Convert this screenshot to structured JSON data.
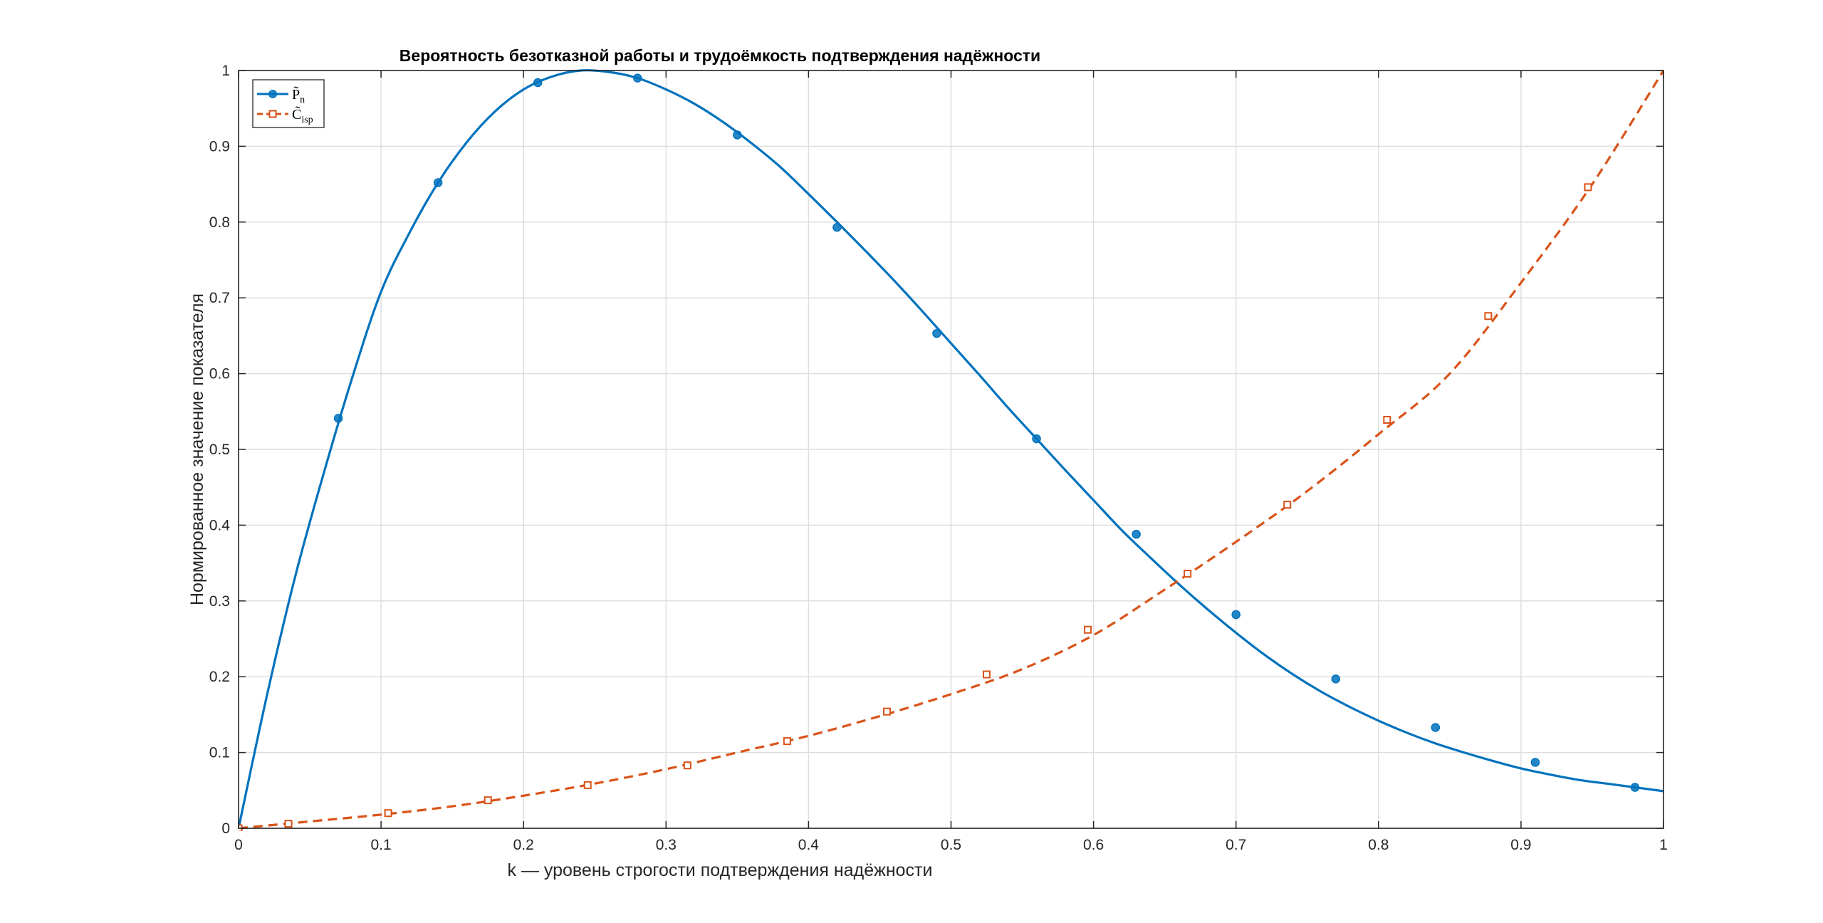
{
  "chart_data": {
    "type": "line",
    "title": "Вероятность безотказной работы и трудоёмкость подтверждения надёжности",
    "xlabel": "k — уровень строгости подтверждения надёжности",
    "ylabel": "Нормированное значение показателя",
    "xlim": [
      0,
      1
    ],
    "ylim": [
      0,
      1
    ],
    "xticks": [
      "0",
      "0.1",
      "0.2",
      "0.3",
      "0.4",
      "0.5",
      "0.6",
      "0.7",
      "0.8",
      "0.9",
      "1"
    ],
    "yticks": [
      "0",
      "0.1",
      "0.2",
      "0.3",
      "0.4",
      "0.5",
      "0.6",
      "0.7",
      "0.8",
      "0.9",
      "1"
    ],
    "grid": true,
    "legend_position": "top-left",
    "series": [
      {
        "name": "P̃_n",
        "legend_main": "P̃",
        "legend_sub": "n",
        "color": "#0072BD",
        "line_style": "solid",
        "marker": "circle",
        "x": [
          0,
          0.02,
          0.04,
          0.06,
          0.08,
          0.1,
          0.12,
          0.14,
          0.16,
          0.18,
          0.2,
          0.22,
          0.24,
          0.26,
          0.28,
          0.3,
          0.32,
          0.34,
          0.36,
          0.38,
          0.4,
          0.42,
          0.44,
          0.46,
          0.48,
          0.5,
          0.52,
          0.54,
          0.56,
          0.58,
          0.6,
          0.62,
          0.64,
          0.66,
          0.68,
          0.7,
          0.72,
          0.74,
          0.76,
          0.78,
          0.8,
          0.82,
          0.84,
          0.86,
          0.88,
          0.9,
          0.92,
          0.94,
          0.96,
          0.98,
          1.0
        ],
        "y": [
          0,
          0.176,
          0.334,
          0.47,
          0.596,
          0.708,
          0.786,
          0.852,
          0.905,
          0.946,
          0.975,
          0.992,
          1.0,
          0.998,
          0.99,
          0.975,
          0.956,
          0.932,
          0.904,
          0.873,
          0.837,
          0.8,
          0.762,
          0.723,
          0.682,
          0.64,
          0.598,
          0.555,
          0.514,
          0.473,
          0.433,
          0.393,
          0.357,
          0.322,
          0.289,
          0.258,
          0.229,
          0.203,
          0.18,
          0.16,
          0.142,
          0.126,
          0.112,
          0.1,
          0.089,
          0.079,
          0.071,
          0.064,
          0.059,
          0.054,
          0.049
        ],
        "markers_x": [
          0,
          0.07,
          0.14,
          0.21,
          0.28,
          0.35,
          0.42,
          0.49,
          0.56,
          0.63,
          0.7,
          0.77,
          0.84,
          0.91,
          0.98
        ],
        "markers_y": [
          0,
          0.541,
          0.852,
          0.984,
          0.99,
          0.915,
          0.793,
          0.653,
          0.514,
          0.388,
          0.282,
          0.197,
          0.133,
          0.087,
          0.054
        ]
      },
      {
        "name": "C̃_isp",
        "legend_main": "C̃",
        "legend_sub": "isp",
        "color": "#D95319",
        "line_style": "dashed",
        "marker": "square",
        "x": [
          0,
          0.05,
          0.1,
          0.15,
          0.2,
          0.25,
          0.3,
          0.35,
          0.4,
          0.45,
          0.5,
          0.55,
          0.6,
          0.65,
          0.7,
          0.75,
          0.8,
          0.85,
          0.9,
          0.95,
          1.0
        ],
        "y": [
          0,
          0.009,
          0.018,
          0.029,
          0.043,
          0.059,
          0.078,
          0.1,
          0.122,
          0.148,
          0.177,
          0.21,
          0.255,
          0.315,
          0.378,
          0.445,
          0.52,
          0.6,
          0.72,
          0.85,
          1.0
        ],
        "markers_x": [
          0,
          0.035,
          0.105,
          0.175,
          0.245,
          0.315,
          0.385,
          0.455,
          0.525,
          0.596,
          0.666,
          0.736,
          0.806,
          0.877,
          0.947
        ],
        "markers_y": [
          0,
          0.006,
          0.02,
          0.037,
          0.057,
          0.083,
          0.115,
          0.154,
          0.203,
          0.262,
          0.336,
          0.427,
          0.539,
          0.676,
          0.846
        ]
      }
    ]
  }
}
